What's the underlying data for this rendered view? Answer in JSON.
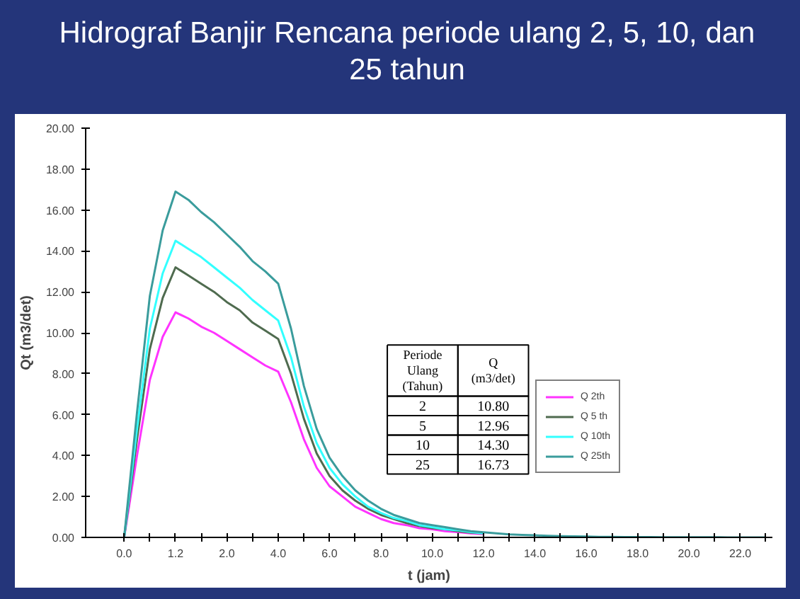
{
  "chart_data": {
    "type": "line",
    "title": "Hidrograf Banjir Rencana periode ulang 2, 5, 10, dan 25 tahun",
    "xlabel": "t (jam)",
    "ylabel": "Qt (m3/det)",
    "categories": [
      "0.0",
      null,
      null,
      null,
      "1.2",
      null,
      null,
      null,
      "2.0",
      null,
      null,
      null,
      "4.0",
      null,
      null,
      null,
      "6.0",
      null,
      null,
      null,
      "8.0",
      null,
      null,
      null,
      "10.0",
      null,
      null,
      null,
      "12.0",
      null,
      null,
      null,
      "14.0",
      null,
      null,
      null,
      "16.0",
      null,
      null,
      null,
      "18.0",
      null,
      null,
      null,
      "20.0",
      null,
      null,
      null,
      "22.0",
      null,
      null
    ],
    "series": [
      {
        "name": "Q 2th",
        "color": "#ff33ff",
        "values": [
          0,
          4.0,
          7.7,
          9.8,
          11.0,
          10.7,
          10.3,
          10.0,
          9.6,
          9.2,
          8.8,
          8.4,
          8.1,
          6.6,
          4.8,
          3.4,
          2.5,
          2.0,
          1.5,
          1.2,
          0.9,
          0.7,
          0.6,
          0.45,
          0.4,
          0.3,
          0.26,
          0.2,
          0.16,
          null,
          null,
          null,
          null,
          null,
          null,
          null,
          null,
          null,
          null,
          null,
          null,
          null,
          null,
          null,
          null,
          null,
          null,
          null,
          null,
          null,
          null
        ]
      },
      {
        "name": "Q 5 th",
        "color": "#4f6b4f",
        "values": [
          0,
          4.8,
          9.2,
          11.7,
          13.2,
          12.8,
          12.4,
          12.0,
          11.5,
          11.1,
          10.5,
          10.1,
          9.7,
          8.0,
          5.8,
          4.1,
          3.0,
          2.3,
          1.8,
          1.4,
          1.1,
          0.9,
          0.7,
          0.55,
          0.45,
          0.4,
          0.3,
          0.23,
          0.2,
          null,
          null,
          null,
          null,
          null,
          null,
          null,
          null,
          null,
          null,
          null,
          null,
          null,
          null,
          null,
          null,
          null,
          null,
          null,
          null,
          null,
          null
        ]
      },
      {
        "name": "Q 10th",
        "color": "#33ffff",
        "values": [
          0,
          5.3,
          10.2,
          12.9,
          14.5,
          14.1,
          13.7,
          13.2,
          12.7,
          12.2,
          11.6,
          11.1,
          10.6,
          8.8,
          6.4,
          4.6,
          3.4,
          2.6,
          2.0,
          1.5,
          1.2,
          0.95,
          0.8,
          0.6,
          0.5,
          0.4,
          0.35,
          0.26,
          0.2,
          null,
          null,
          null,
          null,
          null,
          null,
          null,
          null,
          null,
          null,
          null,
          null,
          null,
          null,
          null,
          null,
          null,
          null,
          null,
          null,
          null,
          null
        ]
      },
      {
        "name": "Q 25th",
        "color": "#3a9c9c",
        "values": [
          0,
          6.1,
          11.8,
          15.0,
          16.9,
          16.5,
          15.9,
          15.4,
          14.8,
          14.2,
          13.5,
          13.0,
          12.4,
          10.2,
          7.4,
          5.3,
          3.9,
          3.0,
          2.3,
          1.8,
          1.4,
          1.1,
          0.9,
          0.7,
          0.6,
          0.5,
          0.4,
          0.3,
          0.25,
          0.2,
          0.15,
          0.12,
          0.1,
          0.08,
          0.06,
          0.05,
          0.04,
          0.03,
          0.03,
          0.02,
          0.02,
          0.02,
          0.01,
          0.01,
          0.01,
          0.01,
          0.01,
          0,
          0,
          0,
          0
        ]
      }
    ],
    "ylim": [
      0,
      20
    ],
    "yticks": [
      {
        "value": 0,
        "label": "0.00"
      },
      {
        "value": 2,
        "label": "2.00"
      },
      {
        "value": 4,
        "label": "4.00"
      },
      {
        "value": 6,
        "label": "6.00"
      },
      {
        "value": 8,
        "label": "8.00"
      },
      {
        "value": 10,
        "label": "10.00"
      },
      {
        "value": 12,
        "label": "12.00"
      },
      {
        "value": 14,
        "label": "14.00"
      },
      {
        "value": 16,
        "label": "16.00"
      },
      {
        "value": 18,
        "label": "18.00"
      },
      {
        "value": 20,
        "label": "20.00"
      }
    ],
    "grid": false,
    "legend": "right",
    "marker": "none",
    "line_style": "solid",
    "annotations": [
      "Periode\nUlang\n(Tahun)",
      "Q\n(m3/det)",
      "2",
      "10.80",
      "5",
      "12.96",
      "10",
      "14.30",
      "25",
      "16.73"
    ]
  }
}
